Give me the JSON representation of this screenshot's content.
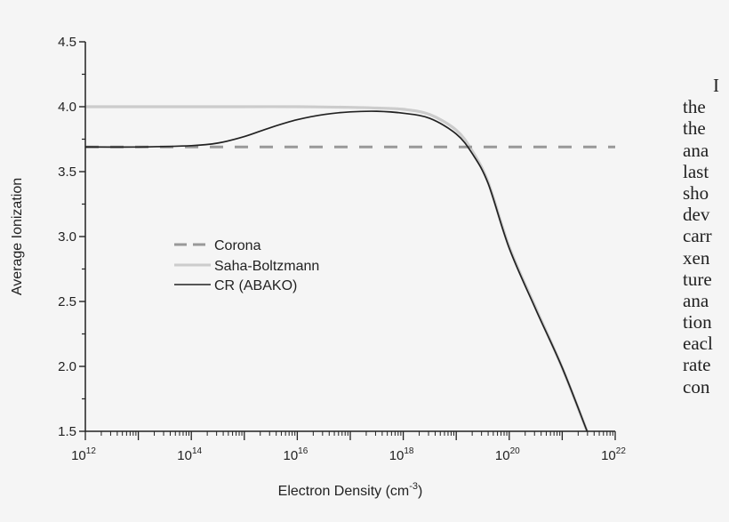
{
  "chart_data": {
    "type": "line",
    "title": "",
    "xlabel": "Electron Density (cm^-3)",
    "xlabel_main": "Electron Density (cm",
    "xlabel_sup": "-3",
    "xlabel_close": ")",
    "ylabel": "Average Ionization",
    "xscale": "log",
    "xlim": [
      1000000000000.0,
      1e+22
    ],
    "ylim": [
      1.5,
      4.5
    ],
    "grid": false,
    "legend_position": "center-left",
    "x_ticks": [
      {
        "base": "10",
        "exp": "12",
        "value": 12
      },
      {
        "base": "10",
        "exp": "14",
        "value": 14
      },
      {
        "base": "10",
        "exp": "16",
        "value": 16
      },
      {
        "base": "10",
        "exp": "18",
        "value": 18
      },
      {
        "base": "10",
        "exp": "20",
        "value": 20
      },
      {
        "base": "10",
        "exp": "22",
        "value": 22
      }
    ],
    "y_ticks": [
      "1.5",
      "2.0",
      "2.5",
      "3.0",
      "3.5",
      "4.0",
      "4.5"
    ],
    "series": [
      {
        "name": "Corona",
        "style": "dashed",
        "color": "#999999",
        "log10_x": [
          12,
          22
        ],
        "y": [
          3.69,
          3.69
        ]
      },
      {
        "name": "Saha-Boltzmann",
        "style": "solid",
        "color": "#cccccc",
        "log10_x": [
          12,
          13,
          14,
          15,
          16,
          17,
          17.5,
          18,
          18.5,
          19,
          19.3,
          19.6,
          20,
          20.5,
          21,
          21.47
        ],
        "y": [
          4.0,
          4.0,
          4.0,
          4.0,
          4.0,
          3.995,
          3.99,
          3.98,
          3.94,
          3.82,
          3.66,
          3.42,
          2.92,
          2.45,
          1.99,
          1.5
        ]
      },
      {
        "name": "CR (ABAKO)",
        "style": "solid",
        "color": "#222222",
        "log10_x": [
          12,
          13,
          14,
          14.5,
          15,
          15.5,
          16,
          16.5,
          17,
          17.5,
          18,
          18.5,
          19,
          19.3,
          19.6,
          20,
          20.5,
          21,
          21.47
        ],
        "y": [
          3.69,
          3.69,
          3.7,
          3.72,
          3.77,
          3.84,
          3.9,
          3.94,
          3.96,
          3.965,
          3.95,
          3.91,
          3.79,
          3.64,
          3.41,
          2.91,
          2.44,
          1.99,
          1.5
        ]
      }
    ]
  },
  "side_text": {
    "lines": [
      "I",
      "the",
      "the",
      "ana",
      "last",
      "sho",
      "dev",
      "carr",
      "xen",
      "ture",
      "ana",
      "tion",
      "eacl",
      "rate",
      "con"
    ]
  }
}
